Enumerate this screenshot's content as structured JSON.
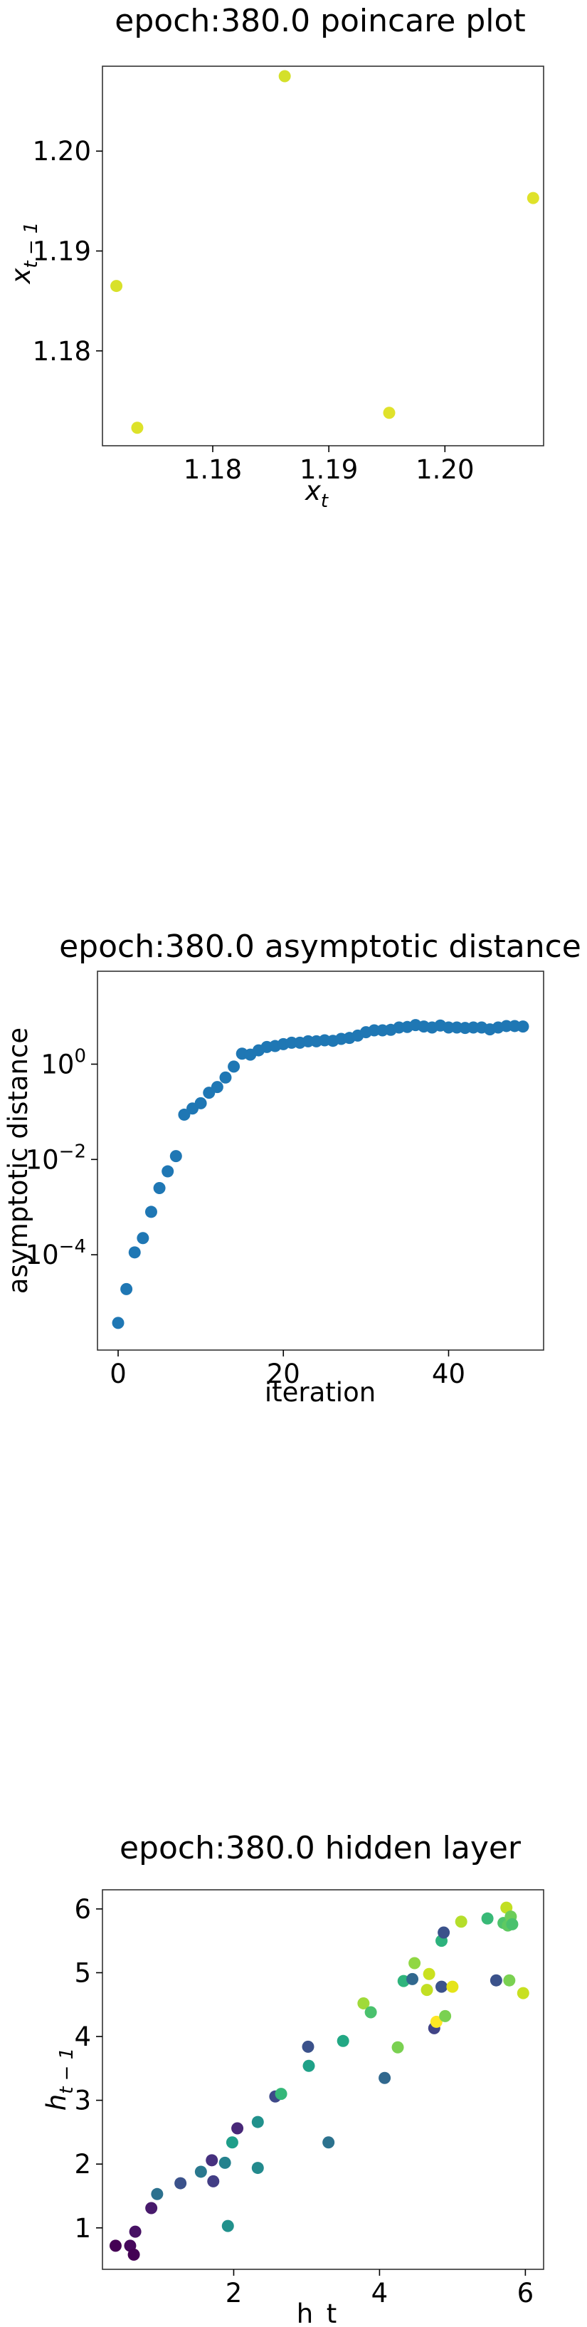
{
  "chart_data": [
    {
      "type": "scatter",
      "title": "epoch:380.0 poincare plot",
      "xlabel_base": "x",
      "xlabel_sub": "t",
      "ylabel_base": "x",
      "ylabel_sub": "t − 1",
      "xlim": [
        1.1705,
        1.2085
      ],
      "ylim": [
        1.1705,
        1.2085
      ],
      "xticks": [
        {
          "v": 1.18,
          "label": "1.18"
        },
        {
          "v": 1.19,
          "label": "1.19"
        },
        {
          "v": 1.2,
          "label": "1.20"
        }
      ],
      "yticks": [
        {
          "v": 1.18,
          "label": "1.18"
        },
        {
          "v": 1.19,
          "label": "1.19"
        },
        {
          "v": 1.2,
          "label": "1.20"
        }
      ],
      "points": [
        {
          "x": 1.1862,
          "y": 1.2075,
          "color": "#d4e02a"
        },
        {
          "x": 1.2076,
          "y": 1.1953,
          "color": "#dfe22a"
        },
        {
          "x": 1.1717,
          "y": 1.1865,
          "color": "#d8e12a"
        },
        {
          "x": 1.1952,
          "y": 1.1738,
          "color": "#e0e22b"
        },
        {
          "x": 1.1735,
          "y": 1.1723,
          "color": "#dde22a"
        }
      ]
    },
    {
      "type": "scatter",
      "title": "epoch:380.0 asymptotic distance",
      "xlabel": "iteration",
      "ylabel": "asymptotic distance",
      "yscale": "log",
      "xlim": [
        -2.5,
        51.5
      ],
      "ylim_log10": [
        -6.0,
        1.95
      ],
      "xticks": [
        {
          "v": 0,
          "label": "0"
        },
        {
          "v": 20,
          "label": "20"
        },
        {
          "v": 40,
          "label": "40"
        }
      ],
      "yticks": [
        {
          "v": 0,
          "base": "10",
          "exp": "0"
        },
        {
          "v": -2,
          "base": "10",
          "exp": "−2"
        },
        {
          "v": -4,
          "base": "10",
          "exp": "−4"
        }
      ],
      "color": "#1f77b4",
      "x": [
        0,
        1,
        2,
        3,
        4,
        5,
        6,
        7,
        8,
        9,
        10,
        11,
        12,
        13,
        14,
        15,
        16,
        17,
        18,
        19,
        20,
        21,
        22,
        23,
        24,
        25,
        26,
        27,
        28,
        29,
        30,
        31,
        32,
        33,
        34,
        35,
        36,
        37,
        38,
        39,
        40,
        41,
        42,
        43,
        44,
        45,
        46,
        47,
        48,
        49
      ],
      "log10_values": [
        -5.43,
        -4.72,
        -3.95,
        -3.65,
        -3.1,
        -2.6,
        -2.25,
        -1.93,
        -1.06,
        -0.93,
        -0.82,
        -0.6,
        -0.48,
        -0.28,
        -0.05,
        0.22,
        0.2,
        0.29,
        0.36,
        0.38,
        0.42,
        0.45,
        0.45,
        0.48,
        0.48,
        0.5,
        0.49,
        0.53,
        0.55,
        0.6,
        0.67,
        0.71,
        0.71,
        0.72,
        0.77,
        0.78,
        0.82,
        0.79,
        0.77,
        0.81,
        0.77,
        0.77,
        0.76,
        0.77,
        0.77,
        0.73,
        0.77,
        0.8,
        0.8,
        0.79
      ]
    },
    {
      "type": "scatter",
      "title": "epoch:380.0 hidden layer",
      "xlabel": "h_t",
      "ylabel_base": "h",
      "ylabel_sub": "t − 1",
      "xlim": [
        0.2,
        6.25
      ],
      "ylim": [
        0.35,
        6.3
      ],
      "xticks": [
        {
          "v": 2,
          "label": "2"
        },
        {
          "v": 4,
          "label": "4"
        },
        {
          "v": 6,
          "label": "6"
        }
      ],
      "yticks": [
        {
          "v": 1,
          "label": "1"
        },
        {
          "v": 2,
          "label": "2"
        },
        {
          "v": 3,
          "label": "3"
        },
        {
          "v": 4,
          "label": "4"
        },
        {
          "v": 5,
          "label": "5"
        },
        {
          "v": 6,
          "label": "6"
        }
      ],
      "points": [
        {
          "x": 0.38,
          "y": 0.72,
          "color": "#440154"
        },
        {
          "x": 0.58,
          "y": 0.72,
          "color": "#46085c"
        },
        {
          "x": 0.63,
          "y": 0.58,
          "color": "#440154"
        },
        {
          "x": 0.65,
          "y": 0.94,
          "color": "#471164"
        },
        {
          "x": 0.87,
          "y": 1.31,
          "color": "#481a6c"
        },
        {
          "x": 0.95,
          "y": 1.53,
          "color": "#2c718e"
        },
        {
          "x": 1.27,
          "y": 1.7,
          "color": "#3b528b"
        },
        {
          "x": 1.55,
          "y": 1.88,
          "color": "#2a788e"
        },
        {
          "x": 1.7,
          "y": 2.06,
          "color": "#46307e"
        },
        {
          "x": 1.72,
          "y": 1.73,
          "color": "#433e85"
        },
        {
          "x": 1.88,
          "y": 2.02,
          "color": "#26828e"
        },
        {
          "x": 1.92,
          "y": 1.03,
          "color": "#21918c"
        },
        {
          "x": 1.98,
          "y": 2.34,
          "color": "#1f9e89"
        },
        {
          "x": 2.05,
          "y": 2.56,
          "color": "#482878"
        },
        {
          "x": 2.33,
          "y": 1.94,
          "color": "#238a8d"
        },
        {
          "x": 2.33,
          "y": 2.66,
          "color": "#21918c"
        },
        {
          "x": 2.57,
          "y": 3.06,
          "color": "#3e4989"
        },
        {
          "x": 2.65,
          "y": 3.1,
          "color": "#35b779"
        },
        {
          "x": 3.02,
          "y": 3.84,
          "color": "#3b528b"
        },
        {
          "x": 3.03,
          "y": 3.54,
          "color": "#1fa188"
        },
        {
          "x": 3.3,
          "y": 2.34,
          "color": "#2c728e"
        },
        {
          "x": 3.5,
          "y": 3.93,
          "color": "#22a884"
        },
        {
          "x": 3.78,
          "y": 4.52,
          "color": "#a0da39"
        },
        {
          "x": 3.88,
          "y": 4.38,
          "color": "#4ac16d"
        },
        {
          "x": 4.07,
          "y": 3.35,
          "color": "#31688e"
        },
        {
          "x": 4.25,
          "y": 3.83,
          "color": "#7ad151"
        },
        {
          "x": 4.33,
          "y": 4.87,
          "color": "#2fb47c"
        },
        {
          "x": 4.45,
          "y": 4.9,
          "color": "#31688e"
        },
        {
          "x": 4.48,
          "y": 5.15,
          "color": "#90d743"
        },
        {
          "x": 4.65,
          "y": 4.73,
          "color": "#c2df23"
        },
        {
          "x": 4.68,
          "y": 4.98,
          "color": "#cae11f"
        },
        {
          "x": 4.75,
          "y": 4.13,
          "color": "#414487"
        },
        {
          "x": 4.78,
          "y": 4.23,
          "color": "#fde725"
        },
        {
          "x": 4.85,
          "y": 4.78,
          "color": "#3b528b"
        },
        {
          "x": 4.85,
          "y": 5.5,
          "color": "#2db27d"
        },
        {
          "x": 4.88,
          "y": 5.63,
          "color": "#3b528b"
        },
        {
          "x": 4.9,
          "y": 4.32,
          "color": "#7ad151"
        },
        {
          "x": 5.0,
          "y": 4.78,
          "color": "#e5e419"
        },
        {
          "x": 5.12,
          "y": 5.8,
          "color": "#b5de2b"
        },
        {
          "x": 5.48,
          "y": 5.85,
          "color": "#38b977"
        },
        {
          "x": 5.6,
          "y": 4.88,
          "color": "#3b528b"
        },
        {
          "x": 5.7,
          "y": 5.78,
          "color": "#4ec36b"
        },
        {
          "x": 5.74,
          "y": 6.02,
          "color": "#c2df23"
        },
        {
          "x": 5.76,
          "y": 5.74,
          "color": "#5ec962"
        },
        {
          "x": 5.78,
          "y": 4.88,
          "color": "#7ad151"
        },
        {
          "x": 5.8,
          "y": 5.88,
          "color": "#6ccd5a"
        },
        {
          "x": 5.82,
          "y": 5.76,
          "color": "#4ac16d"
        },
        {
          "x": 5.97,
          "y": 4.68,
          "color": "#c8e020"
        }
      ]
    }
  ]
}
